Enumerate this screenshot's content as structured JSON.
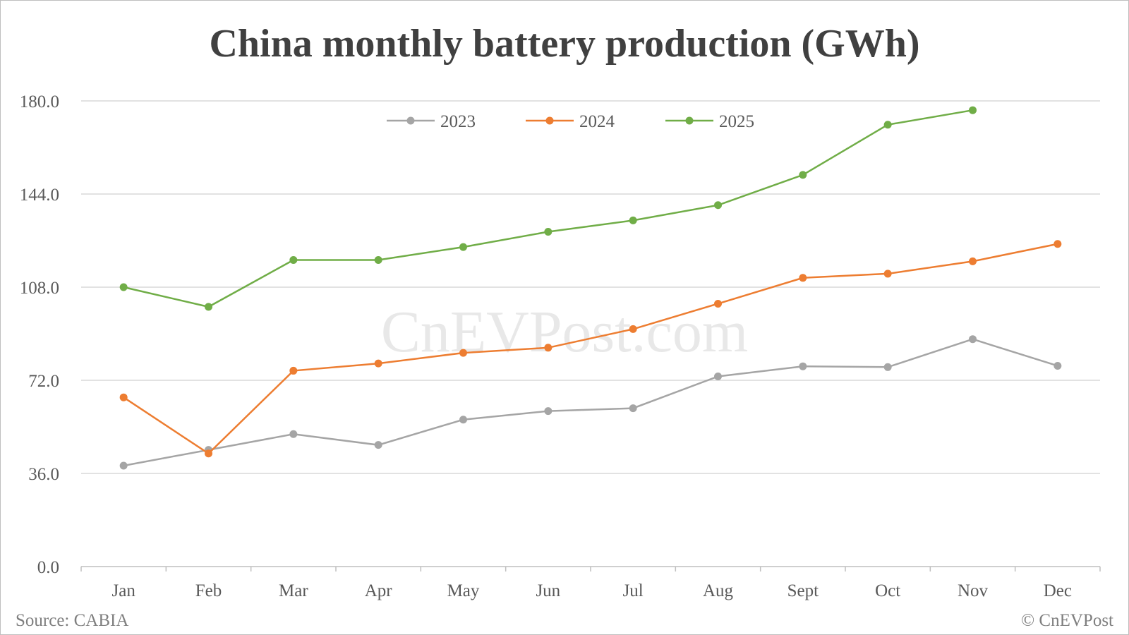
{
  "chart_data": {
    "type": "line",
    "title": "China monthly battery production (GWh)",
    "xlabel": "",
    "ylabel": "",
    "categories": [
      "Jan",
      "Feb",
      "Mar",
      "Apr",
      "May",
      "Jun",
      "Jul",
      "Aug",
      "Sept",
      "Oct",
      "Nov",
      "Dec"
    ],
    "ylim": [
      0,
      180
    ],
    "yticks": [
      "0.0",
      "36.0",
      "72.0",
      "108.0",
      "144.0",
      "180.0"
    ],
    "grid": true,
    "legend_position": "top-center",
    "series": [
      {
        "name": "2023",
        "color": "#a5a5a5",
        "values": [
          39.0,
          45.1,
          51.2,
          47.0,
          56.8,
          60.1,
          61.2,
          73.5,
          77.4,
          77.1,
          87.9,
          77.6
        ]
      },
      {
        "name": "2024",
        "color": "#ed7d31",
        "values": [
          65.4,
          43.7,
          75.7,
          78.5,
          82.6,
          84.6,
          91.8,
          101.6,
          111.6,
          113.2,
          118.0,
          124.7
        ]
      },
      {
        "name": "2025",
        "color": "#70ad47",
        "values": [
          108.0,
          100.4,
          118.5,
          118.5,
          123.5,
          129.4,
          133.8,
          139.7,
          151.4,
          170.8,
          176.4,
          null
        ]
      }
    ]
  },
  "source": "Source: CABIA",
  "copyright": "© CnEVPost",
  "watermark": "CnEVPost.com"
}
